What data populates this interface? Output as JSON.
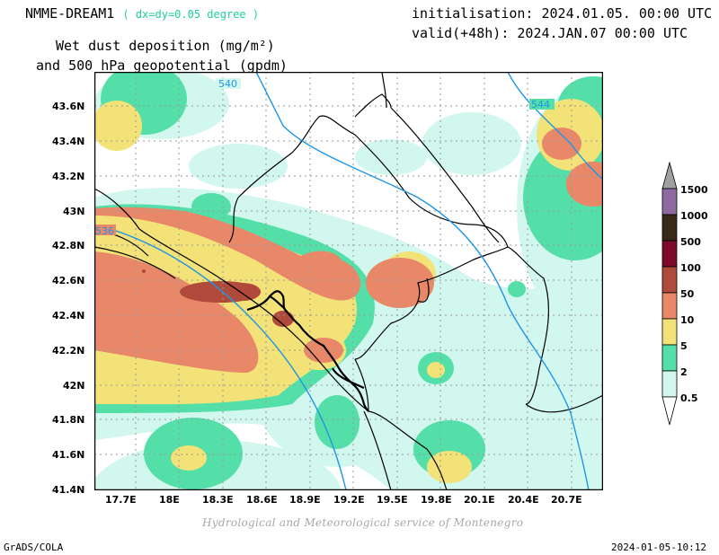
{
  "header": {
    "model": "NMME-DREAM1",
    "resolution": "( dx=dy=0.05 degree )",
    "init": "initialisation: 2024.01.05. 00:00 UTC",
    "valid": "valid(+48h): 2024.JAN.07 00:00 UTC",
    "title_line1": "Wet dust deposition (mg/m²)",
    "title_line2": "and 500 hPa geopotential (gpdm)"
  },
  "axes": {
    "x_ticks": [
      "17.7E",
      "18E",
      "18.3E",
      "18.6E",
      "18.9E",
      "19.2E",
      "19.5E",
      "19.8E",
      "20.1E",
      "20.4E",
      "20.7E"
    ],
    "y_ticks": [
      "43.6N",
      "43.4N",
      "43.2N",
      "43N",
      "42.8N",
      "42.6N",
      "42.4N",
      "42.2N",
      "42N",
      "41.8N",
      "41.6N",
      "41.4N"
    ]
  },
  "contour_labels": [
    "540",
    "544",
    "536"
  ],
  "legend": {
    "labels": [
      "1500",
      "1000",
      "500",
      "100",
      "50",
      "10",
      "5",
      "2",
      "0.5"
    ],
    "colors": [
      "#a0a0a0",
      "#8e6aa0",
      "#3a2818",
      "#7c0a28",
      "#b04a3a",
      "#e88868",
      "#f3e278",
      "#55dfa8",
      "#d2f7ef"
    ]
  },
  "credit": "Hydrological and Meteorological service of Montenegro",
  "footer": {
    "left": "GrADS/COLA",
    "right": "2024-01-05-10:12"
  },
  "colors": {
    "contour": "#1e96e8",
    "border": "#000000",
    "grid": "#9a9a9a"
  }
}
